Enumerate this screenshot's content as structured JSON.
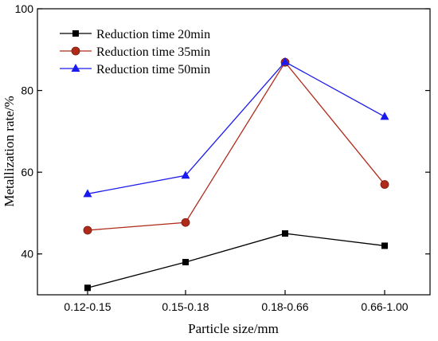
{
  "chart_data": {
    "type": "line",
    "title": "",
    "xlabel": "Particle size/mm",
    "ylabel": "Metallization rate/%",
    "categories": [
      "0.12-0.15",
      "0.15-0.18",
      "0.18-0.66",
      "0.66-1.00"
    ],
    "ylim": [
      30,
      100
    ],
    "yticks": [
      40,
      60,
      80,
      100
    ],
    "grid": false,
    "legend_position": "top-left",
    "series": [
      {
        "name": "Reduction time 20min",
        "marker": "square",
        "color": "#000000",
        "values": [
          31.7,
          38.0,
          45.0,
          42.0
        ]
      },
      {
        "name": "Reduction time 35min",
        "marker": "circle",
        "color": "#b02a1a",
        "values": [
          45.8,
          47.7,
          86.9,
          57.0
        ]
      },
      {
        "name": "Reduction time 50min",
        "marker": "triangle",
        "color": "#1a1aee",
        "values": [
          54.7,
          59.2,
          87.0,
          73.6
        ]
      }
    ]
  }
}
